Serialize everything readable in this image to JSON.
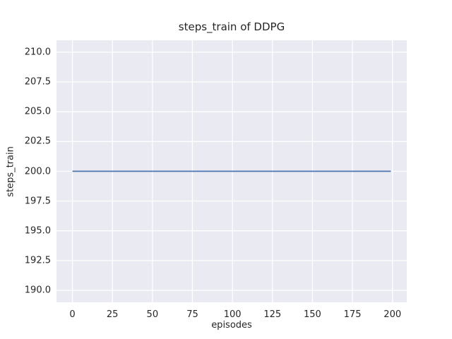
{
  "chart_data": {
    "type": "line",
    "title": "steps_train of DDPG",
    "xlabel": "episodes",
    "ylabel": "steps_train",
    "xlim": [
      -9.95,
      208.95
    ],
    "ylim": [
      189.0,
      211.0
    ],
    "xticks": [
      0,
      25,
      50,
      75,
      100,
      125,
      150,
      175,
      200
    ],
    "xtick_labels": [
      "0",
      "25",
      "50",
      "75",
      "100",
      "125",
      "150",
      "175",
      "200"
    ],
    "yticks": [
      190.0,
      192.5,
      195.0,
      197.5,
      200.0,
      202.5,
      205.0,
      207.5,
      210.0
    ],
    "ytick_labels": [
      "190.0",
      "192.5",
      "195.0",
      "197.5",
      "200.0",
      "202.5",
      "205.0",
      "207.5",
      "210.0"
    ],
    "grid": true,
    "legend": null,
    "plot_background_color": "#eaeaf2",
    "grid_color": "#ffffff",
    "text_color": "#262626",
    "series": [
      {
        "name": "steps_train",
        "color": "#4c72b0",
        "x": [
          0,
          199
        ],
        "y": [
          200,
          200
        ]
      }
    ]
  }
}
